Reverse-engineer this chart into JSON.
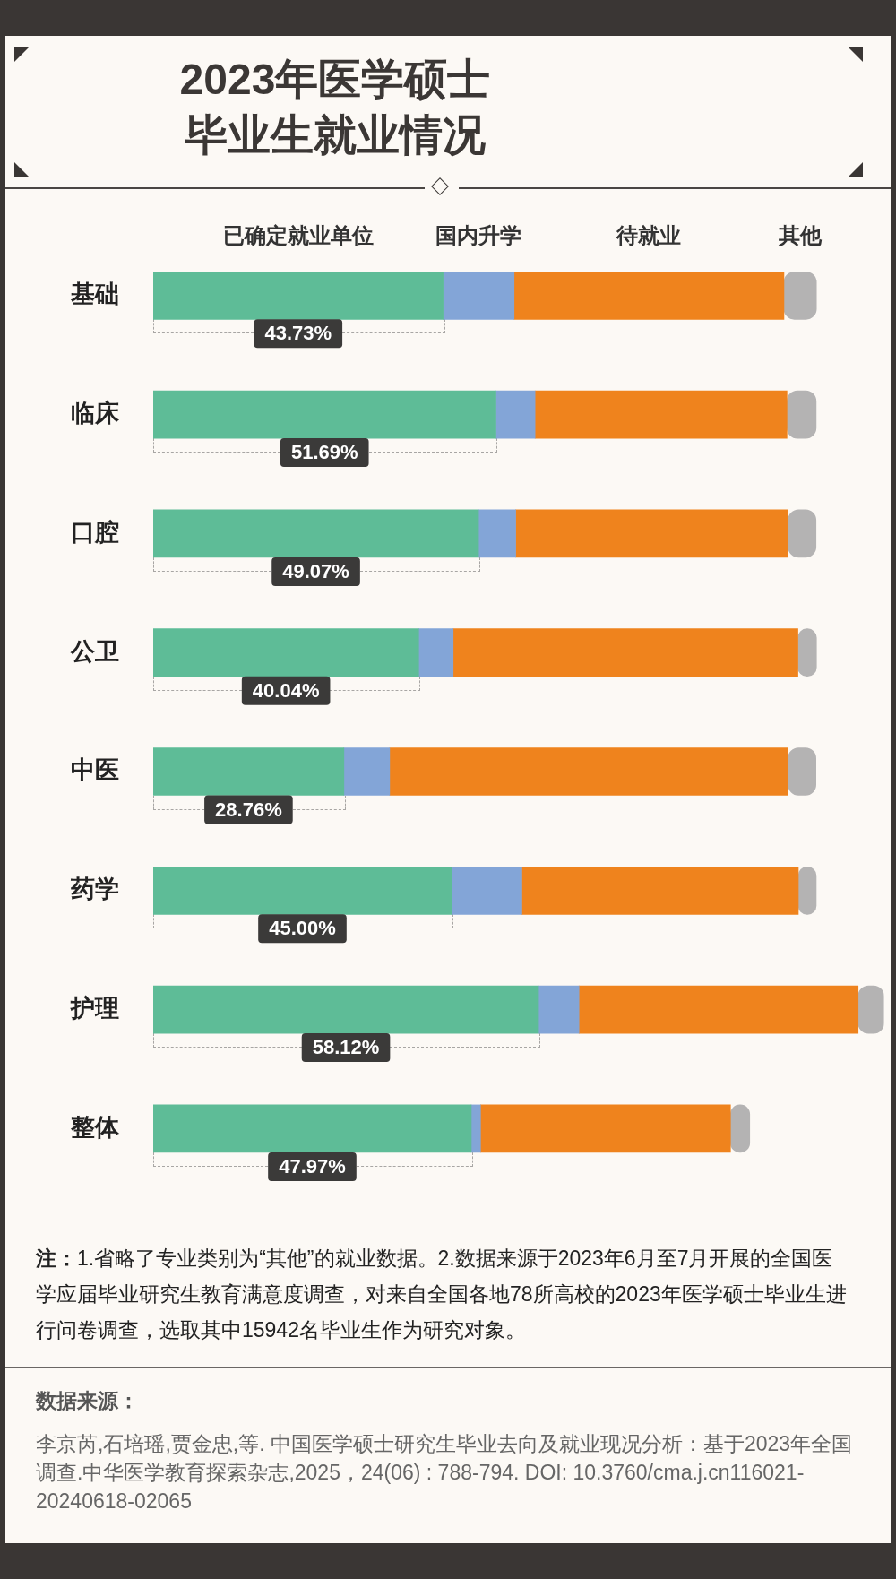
{
  "chart_data": {
    "type": "bar",
    "orientation": "horizontal",
    "stacked": true,
    "title": "2023年医学硕士毕业生就业情况",
    "categories": [
      "基础",
      "临床",
      "口腔",
      "公卫",
      "中医",
      "药学",
      "护理",
      "整体"
    ],
    "series": [
      {
        "name": "已确定就业单位",
        "color": "#5ebc97",
        "values": [
          43.73,
          51.69,
          49.07,
          40.04,
          28.76,
          45.0,
          58.12,
          47.97
        ],
        "value_labels": [
          "43.73%",
          "51.69%",
          "49.07%",
          "40.04%",
          "28.76%",
          "45.00%",
          "58.12%",
          "47.97%"
        ]
      },
      {
        "name": "国内升学",
        "color": "#83a5d7",
        "values": [
          10.7,
          5.9,
          5.6,
          5.2,
          6.9,
          10.6,
          6.1,
          1.4
        ]
      },
      {
        "name": "待就业",
        "color": "#ef831d",
        "values": [
          40.7,
          38.0,
          41.1,
          52.0,
          60.1,
          41.7,
          42.1,
          37.7
        ]
      },
      {
        "name": "其他",
        "color": "#b4b3b3",
        "values": [
          4.9,
          4.4,
          4.2,
          2.8,
          4.2,
          2.7,
          3.9,
          2.9
        ]
      }
    ],
    "legend": "top",
    "tick_labels": "y",
    "annotations": [
      "注：1.省略了专业类别为“其他”的就业数据。2.数据来源于2023年6月至7月开展的全国医学应届毕业研究生教育满意度调查，对来自全国各地78所高校的2023年医学硕士毕业生进行问卷调查，选取其中15942名毕业生作为研究对象。",
      "数据来源：",
      "李京芮,石培瑶,贾金忠,等. 中国医学硕士研究生毕业去向及就业现况分析：基于2023年全国调查.中华医学教育探索杂志,2025，24(06) : 788-794. DOI: 10.3760/cma.j.cn116021-20240618-02065"
    ]
  }
}
